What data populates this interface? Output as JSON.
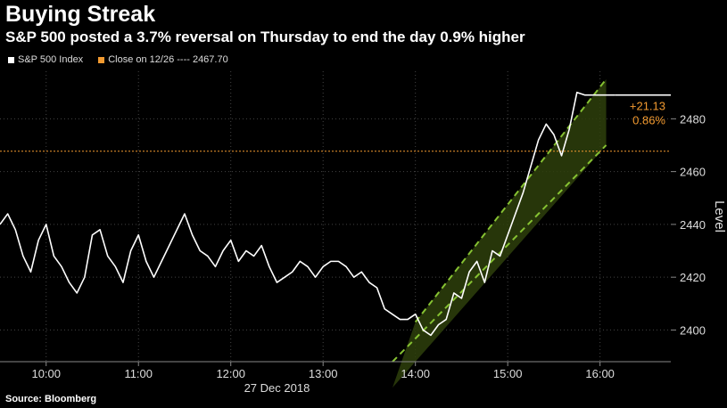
{
  "title": "Buying Streak",
  "subtitle": "S&P 500 posted a 3.7% reversal on Thursday to end the day 0.9% higher",
  "source": "Source: Bloomberg",
  "legend": {
    "series_label": "S&P 500 Index",
    "close_label": "Close on 12/26 ---- 2467.70"
  },
  "colors": {
    "series": "#ffffff",
    "close_line": "#f29a30",
    "channel_fill": "#2e3f0c",
    "channel_border": "#86c232",
    "annotation": "#f29a30"
  },
  "chart_data": {
    "type": "line",
    "title": "",
    "xlabel": "27 Dec 2018",
    "ylabel": "Level",
    "x_ticks": [
      "10:00",
      "11:00",
      "12:00",
      "13:00",
      "14:00",
      "15:00",
      "16:00"
    ],
    "y_ticks": [
      2400,
      2420,
      2440,
      2460,
      2480
    ],
    "xlim": [
      "09:30",
      "16:46"
    ],
    "ylim": [
      2388,
      2498
    ],
    "reference_line": {
      "name": "Close on 12/26",
      "value": 2467.7
    },
    "annotations": [
      "+21.13",
      "0.86%"
    ],
    "series": [
      {
        "name": "S&P 500 Index",
        "x": [
          "09:30",
          "09:35",
          "09:40",
          "09:45",
          "09:50",
          "09:55",
          "10:00",
          "10:05",
          "10:10",
          "10:15",
          "10:20",
          "10:25",
          "10:30",
          "10:35",
          "10:40",
          "10:45",
          "10:50",
          "10:55",
          "11:00",
          "11:05",
          "11:10",
          "11:15",
          "11:20",
          "11:25",
          "11:30",
          "11:35",
          "11:40",
          "11:45",
          "11:50",
          "11:55",
          "12:00",
          "12:05",
          "12:10",
          "12:15",
          "12:20",
          "12:25",
          "12:30",
          "12:35",
          "12:40",
          "12:45",
          "12:50",
          "12:55",
          "13:00",
          "13:05",
          "13:10",
          "13:15",
          "13:20",
          "13:25",
          "13:30",
          "13:35",
          "13:40",
          "13:45",
          "13:50",
          "13:55",
          "14:00",
          "14:05",
          "14:10",
          "14:15",
          "14:20",
          "14:25",
          "14:30",
          "14:35",
          "14:40",
          "14:45",
          "14:50",
          "14:55",
          "15:00",
          "15:05",
          "15:10",
          "15:15",
          "15:20",
          "15:25",
          "15:30",
          "15:35",
          "15:40",
          "15:45",
          "15:50",
          "15:55",
          "16:00",
          "16:05",
          "16:10"
        ],
        "values": [
          2440,
          2444,
          2438,
          2428,
          2422,
          2434,
          2440,
          2428,
          2424,
          2418,
          2414,
          2420,
          2436,
          2438,
          2428,
          2424,
          2418,
          2430,
          2436,
          2426,
          2420,
          2426,
          2432,
          2438,
          2444,
          2436,
          2430,
          2428,
          2424,
          2430,
          2434,
          2426,
          2430,
          2428,
          2432,
          2424,
          2418,
          2420,
          2422,
          2426,
          2424,
          2420,
          2424,
          2426,
          2426,
          2424,
          2420,
          2422,
          2418,
          2416,
          2408,
          2406,
          2404,
          2404,
          2406,
          2400,
          2398,
          2402,
          2404,
          2414,
          2412,
          2422,
          2426,
          2418,
          2430,
          2428,
          2436,
          2444,
          2452,
          2462,
          2472,
          2478,
          2474,
          2466,
          2476,
          2490,
          2489,
          2489,
          2489,
          2489,
          2489
        ]
      }
    ],
    "channel": [
      {
        "x": "14:00",
        "lower": 2388,
        "upper": 2403
      },
      {
        "x": "16:04",
        "lower": 2470,
        "upper": 2495
      }
    ]
  }
}
